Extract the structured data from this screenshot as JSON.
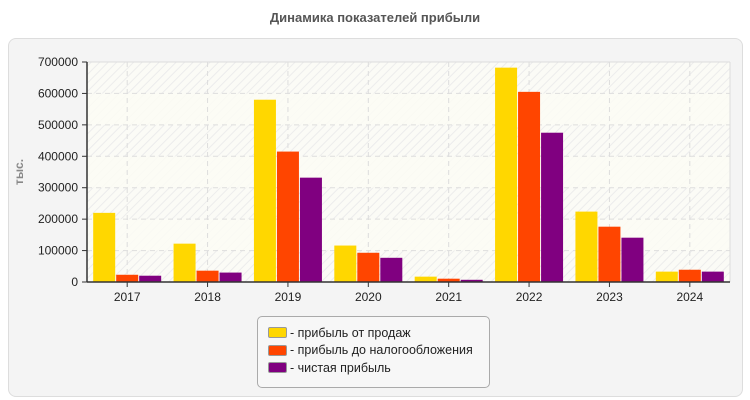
{
  "chart_data": {
    "type": "bar",
    "title": "Динамика показателей прибыли",
    "ylabel": "тыс.",
    "xlabel": "",
    "ylim": [
      0,
      700000
    ],
    "yticks": [
      "0",
      "100000",
      "200000",
      "300000",
      "400000",
      "500000",
      "600000",
      "700000"
    ],
    "categories": [
      "2017",
      "2018",
      "2019",
      "2020",
      "2021",
      "2022",
      "2023",
      "2024"
    ],
    "grid": true,
    "legend": "bottom",
    "series": [
      {
        "name": "- прибыль от продаж",
        "color": "#FFD700",
        "values": [
          220000,
          122000,
          580000,
          116000,
          17000,
          682000,
          224000,
          33000
        ]
      },
      {
        "name": "- прибыль до налогообложения",
        "color": "#FF4500",
        "values": [
          23000,
          36000,
          415000,
          93000,
          10500,
          605000,
          176000,
          39000
        ]
      },
      {
        "name": "- чистая прибыль",
        "color": "#800080",
        "values": [
          20000,
          30000,
          332000,
          77000,
          7000,
          475000,
          141000,
          33000
        ]
      }
    ]
  }
}
